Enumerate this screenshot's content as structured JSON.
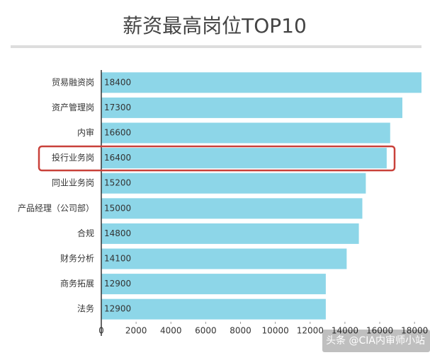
{
  "chart_data": {
    "type": "barh",
    "title": "薪资最高岗位TOP10",
    "categories": [
      "贸易融资岗",
      "资产管理岗",
      "内审",
      "投行业务岗",
      "同业业务岗",
      "产品经理（公司部）",
      "合规",
      "财务分析",
      "商务拓展",
      "法务"
    ],
    "values": [
      18400,
      17300,
      16600,
      16400,
      15200,
      15000,
      14800,
      14100,
      12900,
      12900
    ],
    "color": "#8dd6e8",
    "xlim": [
      0,
      18400
    ],
    "xticks": [
      0,
      2000,
      4000,
      6000,
      8000,
      10000,
      12000,
      14000,
      16000,
      18000
    ]
  },
  "watermark": "头条 @CIA内审师小站"
}
